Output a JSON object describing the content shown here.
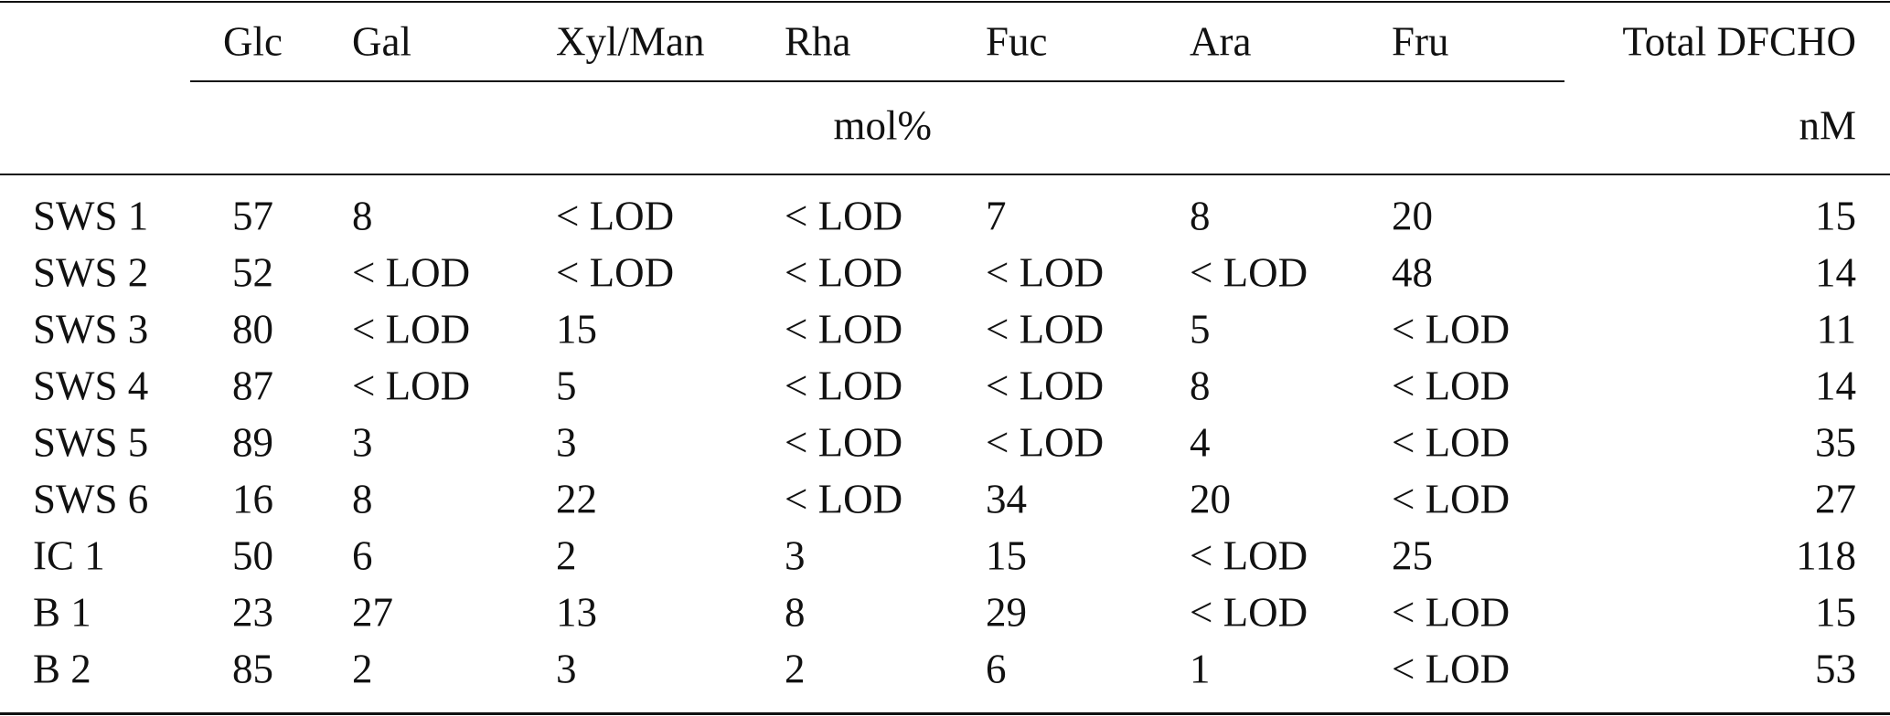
{
  "table": {
    "columns": [
      "Glc",
      "Gal",
      "Xyl/Man",
      "Rha",
      "Fuc",
      "Ara",
      "Fru",
      "Total DFCHO"
    ],
    "units": [
      "mol%",
      "nM"
    ],
    "rows": [
      [
        "SWS 1",
        "57",
        "8",
        "< LOD",
        "< LOD",
        "7",
        "8",
        "20",
        "15"
      ],
      [
        "SWS 2",
        "52",
        "< LOD",
        "< LOD",
        "< LOD",
        "< LOD",
        "< LOD",
        "48",
        "14"
      ],
      [
        "SWS 3",
        "80",
        "< LOD",
        "15",
        "< LOD",
        "< LOD",
        "5",
        "< LOD",
        "11"
      ],
      [
        "SWS 4",
        "87",
        "< LOD",
        "5",
        "< LOD",
        "< LOD",
        "8",
        "< LOD",
        "14"
      ],
      [
        "SWS 5",
        "89",
        "3",
        "3",
        "< LOD",
        "< LOD",
        "4",
        "< LOD",
        "35"
      ],
      [
        "SWS 6",
        "16",
        "8",
        "22",
        "< LOD",
        "34",
        "20",
        "< LOD",
        "27"
      ],
      [
        "IC 1",
        "50",
        "6",
        "2",
        "3",
        "15",
        "< LOD",
        "25",
        "118"
      ],
      [
        "B 1",
        "23",
        "27",
        "13",
        "8",
        "29",
        "< LOD",
        "< LOD",
        "15"
      ],
      [
        "B 2",
        "85",
        "2",
        "3",
        "2",
        "6",
        "1",
        "< LOD",
        "53"
      ]
    ]
  }
}
